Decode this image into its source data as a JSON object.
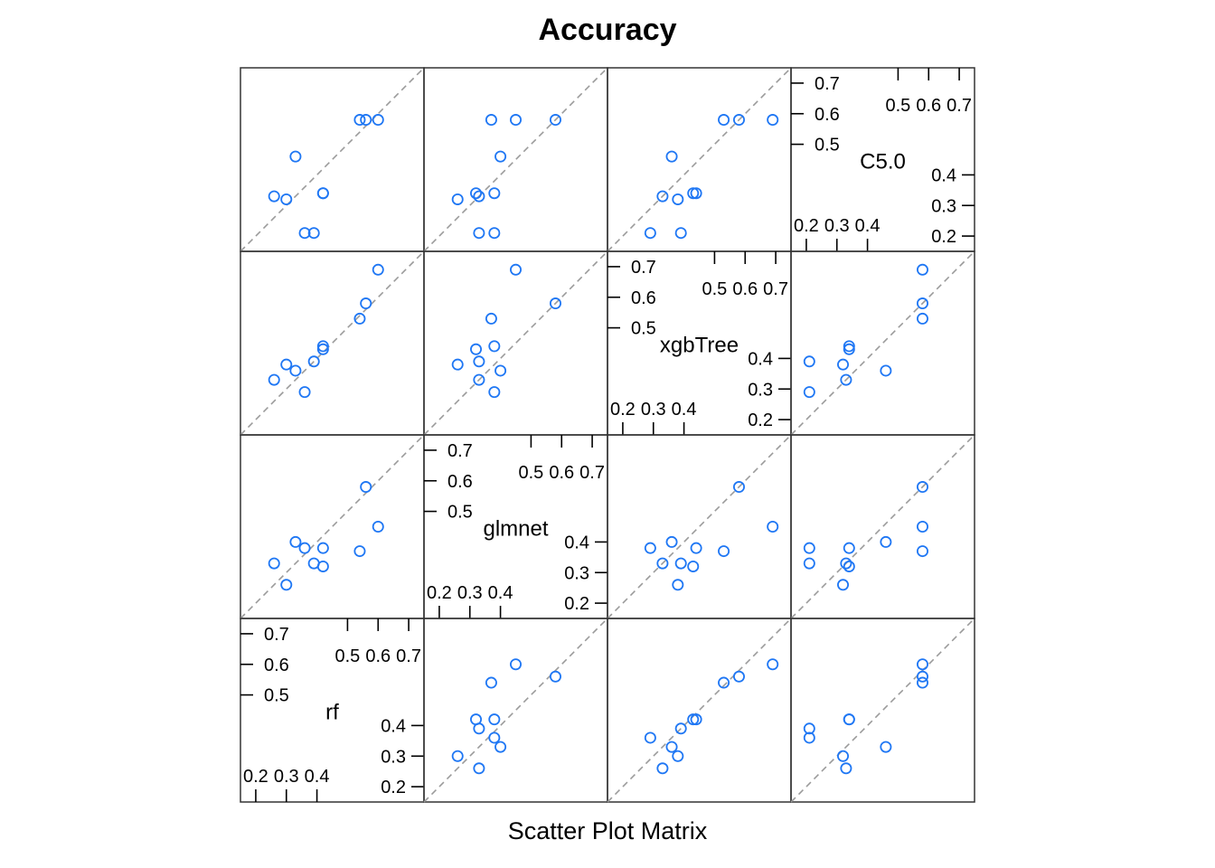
{
  "chart_data": {
    "type": "scatter",
    "title": "Accuracy",
    "xlabel": "Scatter Plot Matrix",
    "ylabel": "",
    "variables": [
      "rf",
      "glmnet",
      "xgbTree",
      "C5.0"
    ],
    "axis_range": [
      0.15,
      0.75
    ],
    "diagonal_ticks": {
      "rf": {
        "left": [
          "0.2",
          "0.3",
          "0.4"
        ],
        "right": [
          "0.5",
          "0.6",
          "0.7"
        ]
      },
      "glmnet": {
        "left": [
          "0.2",
          "0.3",
          "0.4"
        ],
        "right": [
          "0.5",
          "0.6",
          "0.7"
        ]
      },
      "xgbTree": {
        "left": [
          "0.2",
          "0.3",
          "0.4"
        ],
        "right": [
          "0.5",
          "0.6",
          "0.7"
        ]
      },
      "C5.0": {
        "left": [
          "0.2",
          "0.3",
          "0.4"
        ],
        "right": [
          "0.5",
          "0.6",
          "0.7"
        ]
      }
    },
    "reference_line": "y = x (dashed)",
    "grid": false,
    "point_color": "#1f77f4",
    "line_color": "#9b9b9b",
    "observations": {
      "rf": [
        0.26,
        0.3,
        0.42,
        0.54,
        0.42,
        0.56,
        0.33,
        0.39,
        0.6,
        0.36
      ],
      "glmnet": [
        0.33,
        0.26,
        0.32,
        0.37,
        0.38,
        0.58,
        0.4,
        0.33,
        0.45,
        0.38
      ],
      "xgbTree": [
        0.33,
        0.38,
        0.43,
        0.53,
        0.44,
        0.58,
        0.36,
        0.39,
        0.69,
        0.29
      ],
      "C5.0": [
        0.33,
        0.32,
        0.34,
        0.58,
        0.34,
        0.58,
        0.46,
        0.21,
        0.58,
        0.21
      ]
    }
  }
}
